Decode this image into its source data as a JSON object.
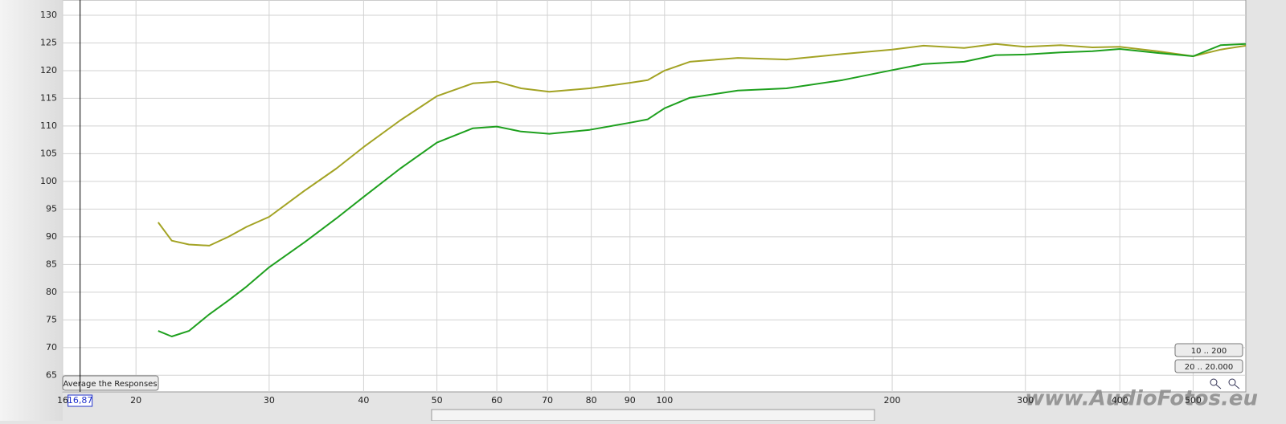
{
  "chart_data": {
    "type": "line",
    "log_x": true,
    "grid": true,
    "x": [
      21.4,
      22.3,
      23.5,
      25,
      26.5,
      28,
      30,
      33.4,
      36.8,
      40,
      44.7,
      50,
      55.8,
      60,
      64.6,
      70.4,
      79.6,
      90,
      95,
      100,
      108,
      125,
      145,
      172,
      200,
      220,
      249,
      274,
      300,
      334,
      368,
      400,
      448,
      500,
      544,
      587
    ],
    "series": [
      {
        "color": "#a3a324",
        "values": [
          92.6,
          89.3,
          88.6,
          88.4,
          90.0,
          91.8,
          93.6,
          98.3,
          102.3,
          106.2,
          111.0,
          115.4,
          117.7,
          118.0,
          116.8,
          116.2,
          116.8,
          117.8,
          118.3,
          120.0,
          121.6,
          122.3,
          122.0,
          123.0,
          123.8,
          124.5,
          124.1,
          124.8,
          124.3,
          124.6,
          124.2,
          124.3,
          123.5,
          122.6,
          123.8,
          124.5
        ]
      },
      {
        "color": "#1ea01e",
        "values": [
          73.0,
          72.0,
          73.0,
          76.0,
          78.5,
          81.0,
          84.5,
          89.0,
          93.3,
          97.2,
          102.3,
          107.0,
          109.6,
          109.9,
          109.0,
          108.6,
          109.3,
          110.6,
          111.2,
          113.2,
          115.1,
          116.4,
          116.8,
          118.3,
          120.1,
          121.2,
          121.6,
          122.8,
          122.9,
          123.3,
          123.5,
          123.9,
          123.2,
          122.6,
          124.6,
          124.8
        ]
      }
    ],
    "xlim": [
      16,
      587
    ],
    "xticks": [
      16,
      20,
      30,
      40,
      50,
      60,
      70,
      80,
      90,
      100,
      200,
      300,
      400,
      500
    ],
    "ylim": [
      62,
      132.75
    ],
    "yticks": [
      65,
      70,
      75,
      80,
      85,
      90,
      95,
      100,
      105,
      110,
      115,
      120,
      125,
      130
    ],
    "cursor": {
      "value": 16.87,
      "label": "16,87"
    }
  },
  "ui": {
    "average_button": "Average the Responses",
    "range_buttons": [
      "10 .. 200",
      "20 .. 20.000"
    ],
    "watermark": "www.AudioFotos.eu"
  }
}
